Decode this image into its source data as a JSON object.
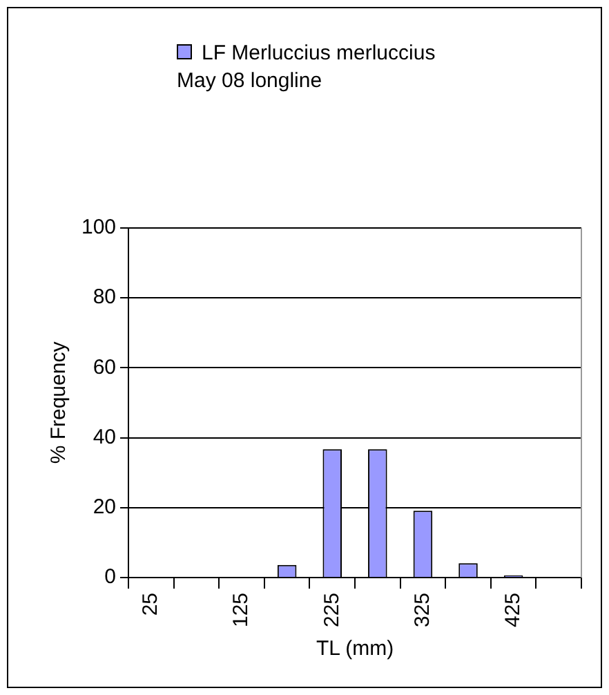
{
  "chart_data": {
    "type": "bar",
    "xlabel": "TL (mm)",
    "ylabel": "% Frequency",
    "categories": [
      "25",
      null,
      "125",
      null,
      "225",
      null,
      "325",
      null,
      "425",
      null
    ],
    "series": [
      {
        "name": "LF Merluccius merluccius May 08 longline",
        "color": "#9999ff",
        "values": [
          0,
          0,
          0,
          3.6,
          36.7,
          36.7,
          19.1,
          4.1,
          0.6,
          0
        ]
      }
    ],
    "ylim": [
      0,
      100
    ],
    "yticks": [
      0,
      20,
      40,
      60,
      80,
      100
    ],
    "grid": "y",
    "legend": "top"
  }
}
